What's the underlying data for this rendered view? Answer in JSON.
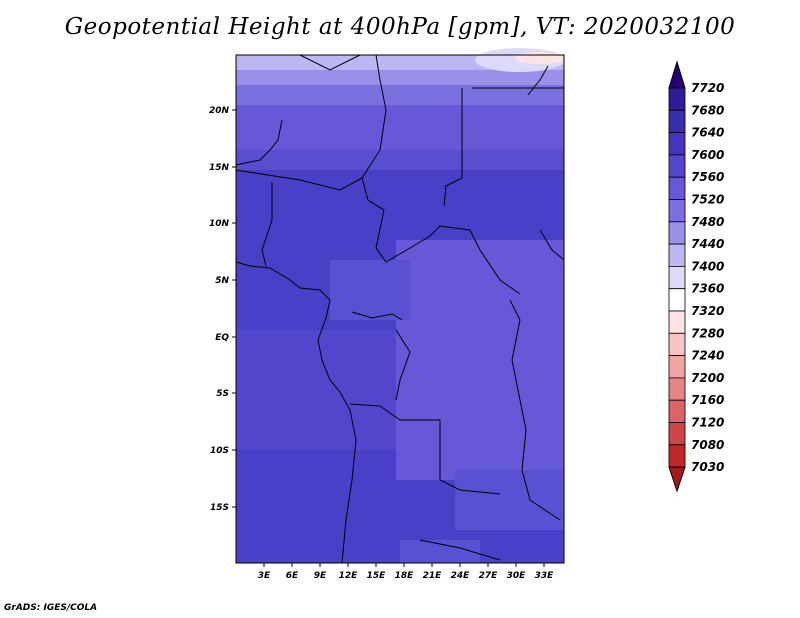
{
  "title": "Geopotential Height at 400hPa [gpm], VT: 2020032100",
  "credit": "GrADS: IGES/COLA",
  "map": {
    "lat_labels": [
      "20N",
      "15N",
      "10N",
      "5N",
      "EQ",
      "5S",
      "10S",
      "15S"
    ],
    "lon_labels": [
      "3E",
      "6E",
      "9E",
      "12E",
      "15E",
      "18E",
      "21E",
      "24E",
      "27E",
      "30E",
      "33E"
    ],
    "lat_range": [
      -20,
      24.5
    ],
    "lon_range": [
      0,
      35
    ]
  },
  "colorbar": {
    "labels": [
      "7720",
      "7680",
      "7640",
      "7600",
      "7560",
      "7520",
      "7480",
      "7440",
      "7400",
      "7360",
      "7320",
      "7280",
      "7240",
      "7200",
      "7160",
      "7120",
      "7080",
      "7030"
    ],
    "colors": [
      "#26007a",
      "#2e1a9a",
      "#3a2eb0",
      "#4634c2",
      "#5446cc",
      "#6658d6",
      "#7a70e0",
      "#9a90ea",
      "#bcb6f2",
      "#dcdaf8",
      "#ffffff",
      "#fde4e4",
      "#f8c4c4",
      "#f0a4a4",
      "#e88484",
      "#dc6464",
      "#d04444",
      "#c02828",
      "#a81818"
    ]
  }
}
